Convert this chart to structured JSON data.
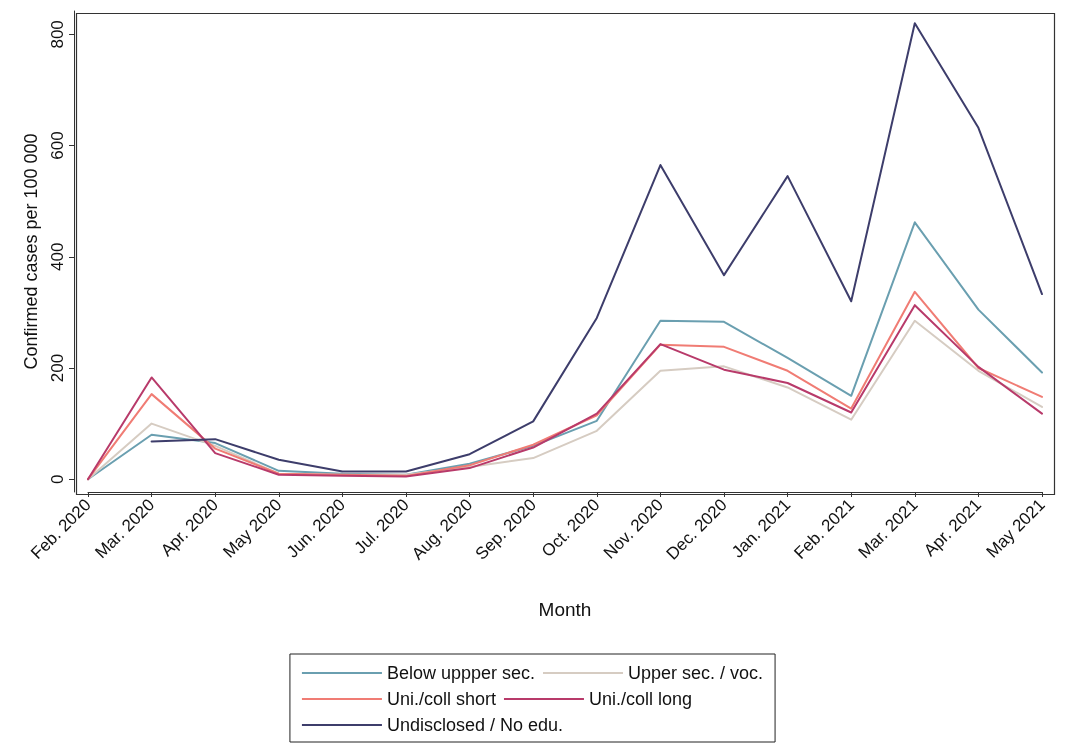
{
  "chart_data": {
    "type": "line",
    "xlabel": "Month",
    "ylabel": "Confirmed cases per 100 000",
    "categories": [
      "Feb. 2020",
      "Mar. 2020",
      "Apr. 2020",
      "May 2020",
      "Jun. 2020",
      "Jul. 2020",
      "Aug. 2020",
      "Sep. 2020",
      "Oct. 2020",
      "Nov. 2020",
      "Dec. 2020",
      "Jan. 2021",
      "Feb. 2021",
      "Mar. 2021",
      "Apr. 2021",
      "May 2021"
    ],
    "series": [
      {
        "name": "Below uppper sec.",
        "color": "#6a9fb0",
        "values": [
          0,
          80,
          65,
          15,
          10,
          8,
          28,
          60,
          105,
          285,
          283,
          218,
          150,
          462,
          305,
          192
        ]
      },
      {
        "name": "Upper sec. / voc.",
        "color": "#d6ccc2",
        "values": [
          0,
          100,
          60,
          10,
          8,
          8,
          22,
          38,
          87,
          195,
          203,
          165,
          107,
          285,
          195,
          130
        ]
      },
      {
        "name": "Uni./coll short",
        "color": "#f07c74",
        "values": [
          0,
          153,
          55,
          10,
          8,
          6,
          25,
          62,
          115,
          242,
          238,
          195,
          127,
          337,
          200,
          148
        ]
      },
      {
        "name": "Uni./coll long",
        "color": "#b83a6a",
        "values": [
          0,
          183,
          47,
          8,
          6,
          5,
          20,
          57,
          118,
          243,
          197,
          173,
          120,
          313,
          202,
          118
        ]
      },
      {
        "name": "Undisclosed / No edu.",
        "color": "#3d3d6b",
        "values": [
          null,
          68,
          72,
          35,
          14,
          14,
          45,
          104,
          290,
          565,
          367,
          545,
          320,
          820,
          632,
          333
        ]
      }
    ],
    "ylim": [
      -23,
      842
    ],
    "yticks": [
      0,
      200,
      400,
      600,
      800
    ],
    "grid": false,
    "legend": "bottom",
    "marker": "none",
    "line_style": "solid"
  }
}
